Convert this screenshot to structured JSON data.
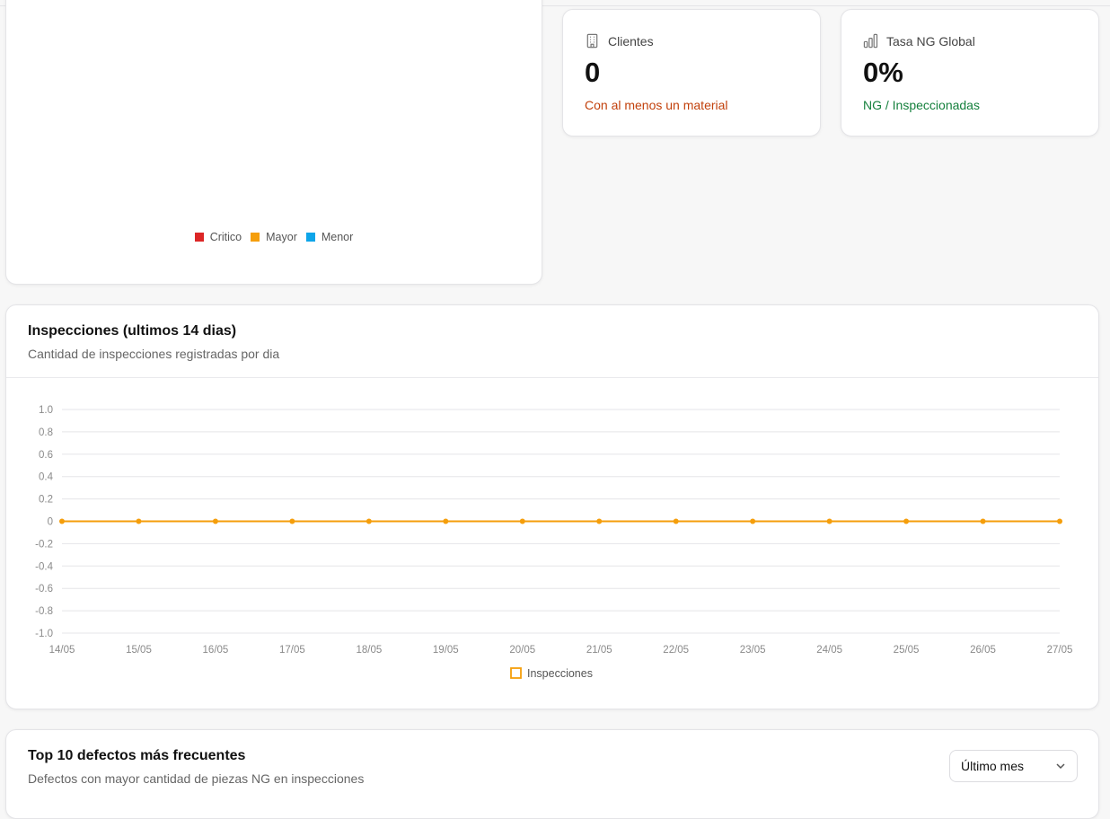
{
  "severity_legend": [
    {
      "label": "Critico",
      "color": "#dc2626"
    },
    {
      "label": "Mayor",
      "color": "#f59e0b"
    },
    {
      "label": "Menor",
      "color": "#0ea5e9"
    }
  ],
  "kpis": {
    "clientes": {
      "icon": "building-icon",
      "label": "Clientes",
      "value": "0",
      "sub": "Con al menos un material",
      "sub_color": "#c2410c"
    },
    "tasa": {
      "icon": "bar-chart-icon",
      "label": "Tasa NG Global",
      "value": "0%",
      "sub": "NG / Inspeccionadas",
      "sub_color": "#15803d"
    }
  },
  "inspections": {
    "title": "Inspecciones (ultimos 14 dias)",
    "description": "Cantidad de inspecciones registradas por dia"
  },
  "chart_data": {
    "type": "line",
    "x": [
      "14/05",
      "15/05",
      "16/05",
      "17/05",
      "18/05",
      "19/05",
      "20/05",
      "21/05",
      "22/05",
      "23/05",
      "24/05",
      "25/05",
      "26/05",
      "27/05"
    ],
    "series": [
      {
        "name": "Inspecciones",
        "values": [
          0,
          0,
          0,
          0,
          0,
          0,
          0,
          0,
          0,
          0,
          0,
          0,
          0,
          0
        ],
        "color": "#f59e0b"
      }
    ],
    "yticks": [
      "1.0",
      "0.8",
      "0.6",
      "0.4",
      "0.2",
      "0",
      "-0.2",
      "-0.4",
      "-0.6",
      "-0.8",
      "-1.0"
    ],
    "ylim": [
      -1.0,
      1.0
    ],
    "grid": true,
    "legend": "bottom"
  },
  "top_defects": {
    "title": "Top 10 defectos más frecuentes",
    "description": "Defectos con mayor cantidad de piezas NG en inspecciones",
    "period_select": {
      "value": "Último mes"
    }
  }
}
